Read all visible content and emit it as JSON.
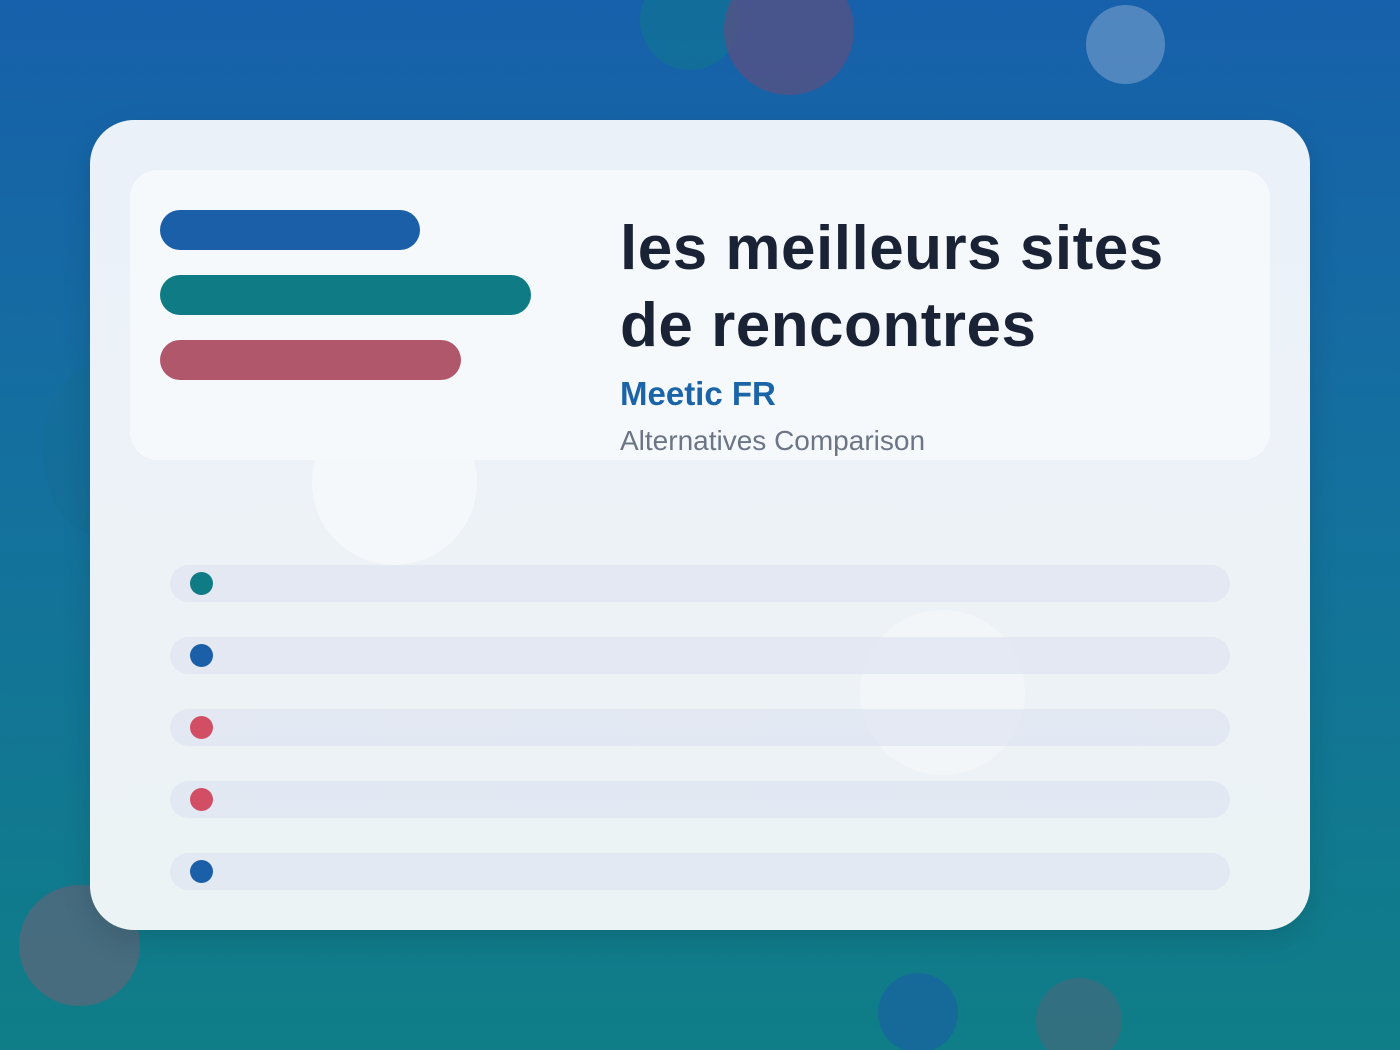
{
  "header": {
    "title": "les meilleurs sites de rencontres",
    "subtitle": "Meetic FR",
    "caption": "Alternatives Comparison"
  },
  "colors": {
    "blue": "#1b5fa8",
    "teal": "#0f7b84",
    "rose": "#b0576c",
    "red": "#d24e65",
    "title": "#1a2236",
    "subtitle": "#1b64a8",
    "caption": "#6c7586"
  },
  "legend_bars": [
    {
      "color": "#1b5fa8",
      "level": 0.7
    },
    {
      "color": "#0f7b84",
      "level": 1.0
    },
    {
      "color": "#b0576c",
      "level": 0.81
    }
  ],
  "rows": [
    {
      "dot_color": "#0f7b84"
    },
    {
      "dot_color": "#1b5fa8"
    },
    {
      "dot_color": "#d24e65"
    },
    {
      "dot_color": "#d24e65"
    },
    {
      "dot_color": "#1b5fa8"
    }
  ]
}
